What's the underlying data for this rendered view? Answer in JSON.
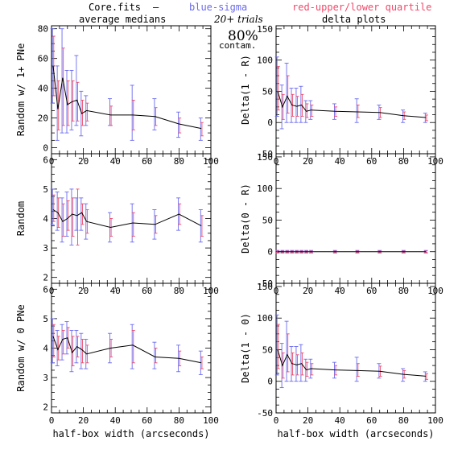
{
  "header": {
    "file": "Core.fits",
    "dash": "—",
    "blue_label": "blue-sigma",
    "red_label": "red-upper/lower quartile",
    "left_title": "average medians",
    "right_title": "delta plots",
    "trials": "20+ trials",
    "contam_pct": "80%",
    "contam_word": "contam."
  },
  "colors": {
    "median": "#000000",
    "sigma": "#6a6af0",
    "quartile": "#f04a6a"
  },
  "chart_data": [
    {
      "type": "line",
      "panel": "top-left",
      "ylabel": "Random w/ 1+ PNe",
      "xlabel": "",
      "xlim": [
        0,
        100
      ],
      "ylim": [
        -4,
        82
      ],
      "x_ticks": [
        0,
        20,
        40,
        60,
        80,
        100
      ],
      "y_ticks": [
        0,
        20,
        40,
        60,
        80
      ],
      "x": [
        1,
        4,
        7,
        10,
        13,
        16,
        19,
        22,
        37,
        51,
        65,
        80,
        94
      ],
      "y": [
        55,
        26,
        47,
        29,
        31,
        32,
        23,
        25,
        22,
        22,
        21,
        16,
        13
      ],
      "sigma": [
        [
          30,
          80
        ],
        [
          5,
          55
        ],
        [
          10,
          80
        ],
        [
          10,
          52
        ],
        [
          12,
          52
        ],
        [
          15,
          62
        ],
        [
          8,
          38
        ],
        [
          15,
          35
        ],
        [
          15,
          33
        ],
        [
          5,
          42
        ],
        [
          12,
          33
        ],
        [
          7,
          24
        ],
        [
          5,
          20
        ]
      ],
      "quartile": [
        [
          35,
          75
        ],
        [
          12,
          45
        ],
        [
          15,
          67
        ],
        [
          15,
          45
        ],
        [
          18,
          45
        ],
        [
          18,
          44
        ],
        [
          15,
          32
        ],
        [
          18,
          30
        ],
        [
          15,
          28
        ],
        [
          12,
          32
        ],
        [
          15,
          27
        ],
        [
          10,
          20
        ],
        [
          8,
          17
        ]
      ]
    },
    {
      "type": "line",
      "panel": "mid-left",
      "ylabel": "Random",
      "xlabel": "",
      "xlim": [
        0,
        100
      ],
      "ylim": [
        1.8,
        6.2
      ],
      "x_ticks": [
        0,
        20,
        40,
        60,
        80,
        100
      ],
      "y_ticks": [
        2,
        3,
        4,
        5,
        6
      ],
      "x": [
        1,
        4,
        7,
        10,
        13,
        16,
        19,
        22,
        37,
        51,
        65,
        80,
        94
      ],
      "y": [
        4.3,
        4.2,
        3.9,
        4.0,
        4.15,
        4.1,
        4.2,
        3.9,
        3.7,
        3.85,
        3.8,
        4.15,
        3.75
      ],
      "sigma": [
        [
          3.8,
          5.0
        ],
        [
          3.6,
          4.9
        ],
        [
          3.2,
          4.7
        ],
        [
          3.4,
          4.9
        ],
        [
          3.1,
          5.0
        ],
        [
          3.6,
          4.7
        ],
        [
          3.6,
          4.7
        ],
        [
          3.3,
          4.5
        ],
        [
          3.2,
          4.2
        ],
        [
          3.2,
          4.5
        ],
        [
          3.3,
          4.3
        ],
        [
          3.6,
          4.7
        ],
        [
          3.2,
          4.3
        ]
      ],
      "quartile": [
        [
          3.9,
          4.8
        ],
        [
          3.7,
          4.7
        ],
        [
          3.4,
          4.5
        ],
        [
          3.6,
          4.6
        ],
        [
          3.4,
          4.7
        ],
        [
          3.1,
          5.0
        ],
        [
          3.8,
          4.5
        ],
        [
          3.5,
          4.3
        ],
        [
          3.4,
          4.0
        ],
        [
          3.4,
          4.2
        ],
        [
          3.5,
          4.1
        ],
        [
          3.8,
          4.5
        ],
        [
          3.4,
          4.1
        ]
      ]
    },
    {
      "type": "line",
      "panel": "bottom-left",
      "ylabel": "Random w/ 0 PNe",
      "xlabel": "half-box width (arcseconds)",
      "xlim": [
        0,
        100
      ],
      "ylim": [
        1.8,
        6.2
      ],
      "x_ticks": [
        0,
        20,
        40,
        60,
        80,
        100
      ],
      "y_ticks": [
        2,
        3,
        4,
        5,
        6
      ],
      "x": [
        1,
        4,
        7,
        10,
        13,
        16,
        19,
        22,
        37,
        51,
        65,
        80,
        94
      ],
      "y": [
        4.4,
        3.95,
        4.3,
        4.35,
        3.85,
        4.05,
        3.95,
        3.8,
        4.0,
        4.1,
        3.7,
        3.65,
        3.5
      ],
      "sigma": [
        [
          3.5,
          5.0
        ],
        [
          3.4,
          4.6
        ],
        [
          3.6,
          4.8
        ],
        [
          3.8,
          4.9
        ],
        [
          3.2,
          4.6
        ],
        [
          3.5,
          4.6
        ],
        [
          3.3,
          4.5
        ],
        [
          3.3,
          4.3
        ],
        [
          3.5,
          4.5
        ],
        [
          3.3,
          4.8
        ],
        [
          3.3,
          4.2
        ],
        [
          3.2,
          4.1
        ],
        [
          3.1,
          3.9
        ]
      ],
      "quartile": [
        [
          3.7,
          4.8
        ],
        [
          3.6,
          4.4
        ],
        [
          3.8,
          4.6
        ],
        [
          4.0,
          4.7
        ],
        [
          3.4,
          4.4
        ],
        [
          3.7,
          4.4
        ],
        [
          3.5,
          4.3
        ],
        [
          3.5,
          4.1
        ],
        [
          3.7,
          4.3
        ],
        [
          3.5,
          4.6
        ],
        [
          3.5,
          4.0
        ],
        [
          3.4,
          3.9
        ],
        [
          3.3,
          3.7
        ]
      ]
    },
    {
      "type": "line",
      "panel": "top-right",
      "ylabel": "Delta(1 - R)",
      "xlabel": "",
      "xlim": [
        0,
        100
      ],
      "ylim": [
        -50,
        155
      ],
      "x_ticks": [
        0,
        20,
        40,
        60,
        80,
        100
      ],
      "y_ticks": [
        -50,
        0,
        50,
        100,
        150
      ],
      "x": [
        1,
        4,
        7,
        10,
        13,
        16,
        19,
        22,
        37,
        51,
        65,
        80,
        94
      ],
      "y": [
        50,
        25,
        42,
        28,
        26,
        28,
        18,
        20,
        18,
        17,
        16,
        11,
        8
      ],
      "sigma": [
        [
          10,
          105
        ],
        [
          -10,
          60
        ],
        [
          0,
          95
        ],
        [
          0,
          55
        ],
        [
          0,
          55
        ],
        [
          0,
          58
        ],
        [
          0,
          35
        ],
        [
          5,
          35
        ],
        [
          5,
          30
        ],
        [
          0,
          38
        ],
        [
          5,
          28
        ],
        [
          0,
          20
        ],
        [
          0,
          15
        ]
      ],
      "quartile": [
        [
          20,
          90
        ],
        [
          5,
          45
        ],
        [
          15,
          75
        ],
        [
          10,
          45
        ],
        [
          10,
          42
        ],
        [
          10,
          45
        ],
        [
          8,
          30
        ],
        [
          10,
          28
        ],
        [
          10,
          25
        ],
        [
          8,
          28
        ],
        [
          8,
          24
        ],
        [
          5,
          17
        ],
        [
          3,
          12
        ]
      ]
    },
    {
      "type": "line",
      "panel": "mid-right",
      "ylabel": "Delta(0 - R)",
      "xlabel": "",
      "xlim": [
        0,
        100
      ],
      "ylim": [
        -50,
        155
      ],
      "x_ticks": [
        0,
        20,
        40,
        60,
        80,
        100
      ],
      "y_ticks": [
        -50,
        0,
        50,
        100,
        150
      ],
      "x": [
        1,
        4,
        7,
        10,
        13,
        16,
        19,
        22,
        37,
        51,
        65,
        80,
        94
      ],
      "y": [
        0,
        0,
        0,
        0,
        0,
        0,
        0,
        0,
        0,
        0,
        0,
        0,
        0
      ],
      "sigma": [
        [
          -2,
          2
        ],
        [
          -2,
          2
        ],
        [
          -2,
          2
        ],
        [
          -2,
          2
        ],
        [
          -2,
          2
        ],
        [
          -2,
          2
        ],
        [
          -2,
          2
        ],
        [
          -2,
          2
        ],
        [
          -2,
          2
        ],
        [
          -2,
          2
        ],
        [
          -2,
          2
        ],
        [
          -2,
          2
        ],
        [
          -2,
          2
        ]
      ],
      "quartile": [
        [
          -1,
          1
        ],
        [
          -1,
          1
        ],
        [
          -1,
          1
        ],
        [
          -1,
          1
        ],
        [
          -1,
          1
        ],
        [
          -1,
          1
        ],
        [
          -1,
          1
        ],
        [
          -1,
          1
        ],
        [
          -1,
          1
        ],
        [
          -1,
          1
        ],
        [
          -1,
          1
        ],
        [
          -1,
          1
        ],
        [
          -1,
          1
        ]
      ]
    },
    {
      "type": "line",
      "panel": "bottom-right",
      "ylabel": "Delta(1 - 0)",
      "xlabel": "half-box width (arcseconds)",
      "xlim": [
        0,
        100
      ],
      "ylim": [
        -50,
        155
      ],
      "x_ticks": [
        0,
        20,
        40,
        60,
        80,
        100
      ],
      "y_ticks": [
        -50,
        0,
        50,
        100,
        150
      ],
      "x": [
        1,
        4,
        7,
        10,
        13,
        16,
        19,
        22,
        37,
        51,
        65,
        80,
        94
      ],
      "y": [
        50,
        25,
        42,
        28,
        26,
        28,
        18,
        20,
        18,
        17,
        16,
        11,
        8
      ],
      "sigma": [
        [
          10,
          105
        ],
        [
          -10,
          60
        ],
        [
          0,
          95
        ],
        [
          0,
          55
        ],
        [
          0,
          55
        ],
        [
          0,
          58
        ],
        [
          0,
          35
        ],
        [
          5,
          35
        ],
        [
          5,
          30
        ],
        [
          0,
          38
        ],
        [
          5,
          28
        ],
        [
          0,
          20
        ],
        [
          0,
          15
        ]
      ],
      "quartile": [
        [
          20,
          90
        ],
        [
          5,
          45
        ],
        [
          15,
          75
        ],
        [
          10,
          45
        ],
        [
          10,
          42
        ],
        [
          10,
          45
        ],
        [
          8,
          30
        ],
        [
          10,
          28
        ],
        [
          10,
          25
        ],
        [
          8,
          28
        ],
        [
          8,
          24
        ],
        [
          5,
          17
        ],
        [
          3,
          12
        ]
      ]
    }
  ]
}
